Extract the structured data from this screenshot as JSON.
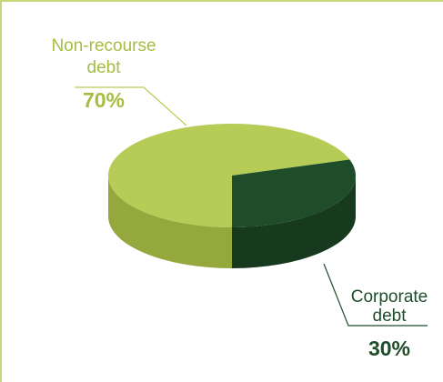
{
  "chart_data": {
    "type": "pie",
    "categories": [
      "Non-recourse debt",
      "Corporate debt"
    ],
    "values": [
      70,
      30
    ],
    "labels": [
      {
        "line1": "Non-recourse",
        "line2": "debt",
        "pct": "70%"
      },
      {
        "line1": "Corporate",
        "line2": "debt",
        "pct": "30%"
      }
    ],
    "colors": {
      "non_recourse": "#b6cc57",
      "non_recourse_side": "#94a83e",
      "corporate": "#1f4d29",
      "corporate_side": "#17391e",
      "label_light": "#a5bd43",
      "label_dark": "#1f4d29",
      "frame": "#c9d77a",
      "leader": "#b6cc57"
    },
    "style": "3d"
  }
}
